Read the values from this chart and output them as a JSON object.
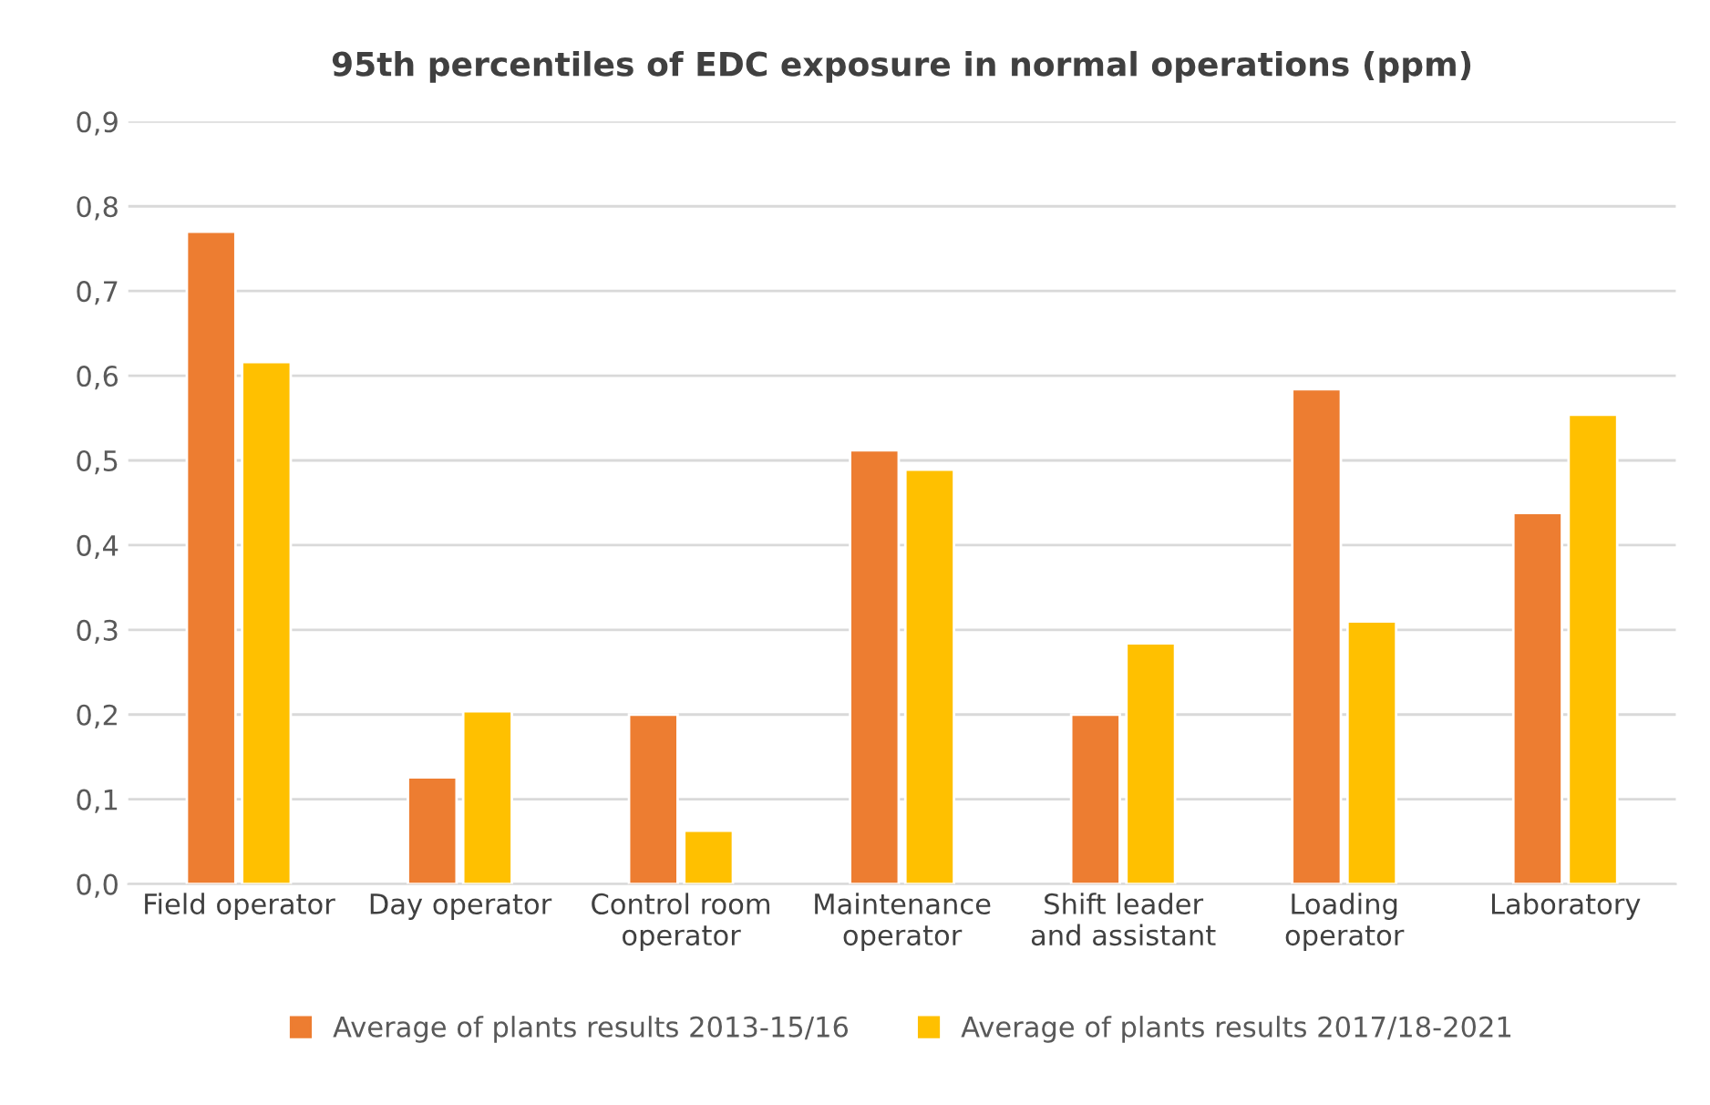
{
  "chart_data": {
    "type": "bar",
    "title": "95th percentiles of EDC exposure in normal operations (ppm)",
    "categories": [
      "Field operator",
      "Day operator",
      "Control room\noperator",
      "Maintenance\noperator",
      "Shift leader\nand assistant",
      "Loading\noperator",
      "Laboratory"
    ],
    "series": [
      {
        "name": "Average of plants results 2013-15/16",
        "color": "#ed7d31",
        "values": [
          0.77,
          0.126,
          0.2,
          0.512,
          0.2,
          0.584,
          0.438
        ]
      },
      {
        "name": "Average of plants results 2017/18-2021",
        "color": "#ffc000",
        "values": [
          0.616,
          0.204,
          0.063,
          0.489,
          0.284,
          0.31,
          0.554
        ]
      }
    ],
    "ylim": [
      0,
      0.9
    ],
    "yticks": [
      {
        "value": 0,
        "label": "0,0"
      },
      {
        "value": 0.1,
        "label": "0,1"
      },
      {
        "value": 0.2,
        "label": "0,2"
      },
      {
        "value": 0.3,
        "label": "0,3"
      },
      {
        "value": 0.4,
        "label": "0,4"
      },
      {
        "value": 0.5,
        "label": "0,5"
      },
      {
        "value": 0.6,
        "label": "0,6"
      },
      {
        "value": 0.7,
        "label": "0,7"
      },
      {
        "value": 0.8,
        "label": "0,8"
      },
      {
        "value": 0.9,
        "label": "0,9"
      }
    ],
    "grid": "y",
    "legend": "bottom"
  }
}
